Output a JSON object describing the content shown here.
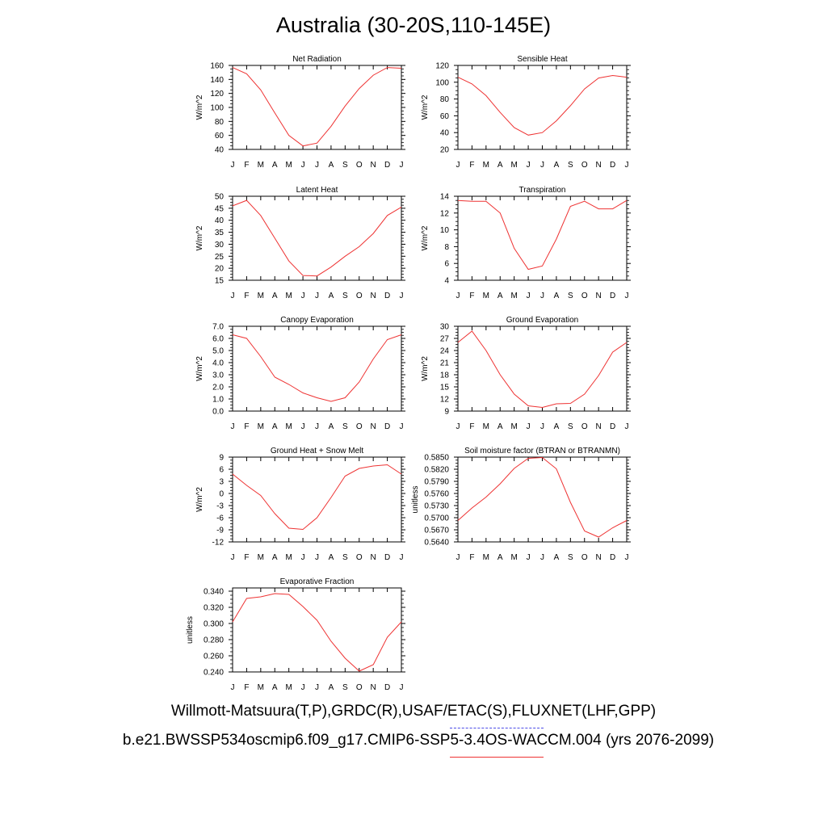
{
  "title": "Australia (30-20S,110-145E)",
  "legend": {
    "observations": "Willmott-Matsuura(T,P),GRDC(R),USAF/ETAC(S),FLUXNET(LHF,GPP)",
    "model": "b.e21.BWSSP534oscmip6.f09_g17.CMIP6-SSP5-3.4OS-WACCM.004 (yrs 2076-2099)",
    "observations_color": "#4a4ae8",
    "model_color": "#ee3333"
  },
  "chart_data": [
    {
      "type": "line",
      "title": "Net Radiation",
      "ylabel": "W/m^2",
      "categories": [
        "J",
        "F",
        "M",
        "A",
        "M",
        "J",
        "J",
        "A",
        "S",
        "O",
        "N",
        "D",
        "J"
      ],
      "yticks": [
        "40",
        "60",
        "80",
        "100",
        "120",
        "140",
        "160"
      ],
      "ylim": [
        40,
        160
      ],
      "series": [
        {
          "values": [
            157,
            148,
            125,
            92,
            60,
            45,
            49,
            73,
            102,
            127,
            146,
            157,
            156
          ],
          "color": "#ee3333"
        }
      ]
    },
    {
      "type": "line",
      "title": "Sensible Heat",
      "ylabel": "W/m^2",
      "categories": [
        "J",
        "F",
        "M",
        "A",
        "M",
        "J",
        "J",
        "A",
        "S",
        "O",
        "N",
        "D",
        "J"
      ],
      "yticks": [
        "20",
        "40",
        "60",
        "80",
        "100",
        "120"
      ],
      "ylim": [
        20,
        120
      ],
      "series": [
        {
          "values": [
            106,
            98,
            84,
            64,
            46,
            37,
            40,
            54,
            72,
            92,
            105,
            108,
            106
          ],
          "color": "#ee3333"
        }
      ]
    },
    {
      "type": "line",
      "title": "Latent Heat",
      "ylabel": "W/m^2",
      "categories": [
        "J",
        "F",
        "M",
        "A",
        "M",
        "J",
        "J",
        "A",
        "S",
        "O",
        "N",
        "D",
        "J"
      ],
      "yticks": [
        "15",
        "20",
        "25",
        "30",
        "35",
        "40",
        "45",
        "50"
      ],
      "ylim": [
        15,
        50
      ],
      "series": [
        {
          "values": [
            46,
            48.3,
            42,
            32.5,
            23,
            17,
            16.8,
            20.5,
            25,
            29,
            34.5,
            42,
            45.5
          ],
          "color": "#ee3333"
        }
      ]
    },
    {
      "type": "line",
      "title": "Transpiration",
      "ylabel": "W/m^2",
      "categories": [
        "J",
        "F",
        "M",
        "A",
        "M",
        "J",
        "J",
        "A",
        "S",
        "O",
        "N",
        "D",
        "J"
      ],
      "yticks": [
        "4",
        "6",
        "8",
        "10",
        "12",
        "14"
      ],
      "ylim": [
        4,
        14
      ],
      "series": [
        {
          "values": [
            13.5,
            13.4,
            13.4,
            12,
            7.8,
            5.3,
            5.7,
            8.9,
            12.8,
            13.4,
            12.5,
            12.5,
            13.5
          ],
          "color": "#ee3333"
        }
      ]
    },
    {
      "type": "line",
      "title": "Canopy Evaporation",
      "ylabel": "W/m^2",
      "categories": [
        "J",
        "F",
        "M",
        "A",
        "M",
        "J",
        "J",
        "A",
        "S",
        "O",
        "N",
        "D",
        "J"
      ],
      "yticks": [
        "0.0",
        "1.0",
        "2.0",
        "3.0",
        "4.0",
        "5.0",
        "6.0",
        "7.0"
      ],
      "ylim": [
        0,
        7
      ],
      "series": [
        {
          "values": [
            6.3,
            6.0,
            4.5,
            2.8,
            2.2,
            1.5,
            1.1,
            0.8,
            1.1,
            2.4,
            4.3,
            5.9,
            6.3
          ],
          "color": "#ee3333"
        }
      ]
    },
    {
      "type": "line",
      "title": "Ground Evaporation",
      "ylabel": "W/m^2",
      "categories": [
        "J",
        "F",
        "M",
        "A",
        "M",
        "J",
        "J",
        "A",
        "S",
        "O",
        "N",
        "D",
        "J"
      ],
      "yticks": [
        "9",
        "12",
        "15",
        "18",
        "21",
        "24",
        "27",
        "30"
      ],
      "ylim": [
        9,
        30
      ],
      "series": [
        {
          "values": [
            26,
            28.8,
            24,
            18,
            13.2,
            10.3,
            9.9,
            10.8,
            10.9,
            13.2,
            17.8,
            23.6,
            26
          ],
          "color": "#ee3333"
        }
      ]
    },
    {
      "type": "line",
      "title": "Ground Heat + Snow Melt",
      "ylabel": "W/m^2",
      "categories": [
        "J",
        "F",
        "M",
        "A",
        "M",
        "J",
        "J",
        "A",
        "S",
        "O",
        "N",
        "D",
        "J"
      ],
      "yticks": [
        "-12",
        "-9",
        "-6",
        "-3",
        "0",
        "3",
        "6",
        "9"
      ],
      "ylim": [
        -12,
        9
      ],
      "series": [
        {
          "values": [
            4.8,
            2,
            -0.5,
            -5,
            -8.6,
            -8.9,
            -6,
            -1,
            4.3,
            6.2,
            6.8,
            7.1,
            4.8
          ],
          "color": "#ee3333"
        }
      ]
    },
    {
      "type": "line",
      "title": "Soil moisture factor (BTRAN or BTRANMN)",
      "ylabel": "unitless",
      "categories": [
        "J",
        "F",
        "M",
        "A",
        "M",
        "J",
        "J",
        "A",
        "S",
        "O",
        "N",
        "D",
        "J"
      ],
      "yticks": [
        "0.5640",
        "0.5670",
        "0.5700",
        "0.5730",
        "0.5760",
        "0.5790",
        "0.5820",
        "0.5850"
      ],
      "ylim": [
        0.564,
        0.585
      ],
      "series": [
        {
          "values": [
            0.5693,
            0.5724,
            0.5751,
            0.5784,
            0.5822,
            0.5847,
            0.5849,
            0.5821,
            0.5738,
            0.5667,
            0.5652,
            0.5675,
            0.5693
          ],
          "color": "#ee3333"
        }
      ]
    },
    {
      "type": "line",
      "title": "Evaporative Fraction",
      "ylabel": "unitless",
      "categories": [
        "J",
        "F",
        "M",
        "A",
        "M",
        "J",
        "J",
        "A",
        "S",
        "O",
        "N",
        "D",
        "J"
      ],
      "yticks": [
        "0.240",
        "0.260",
        "0.280",
        "0.300",
        "0.320",
        "0.340"
      ],
      "ylim": [
        0.24,
        0.344
      ],
      "series": [
        {
          "values": [
            0.302,
            0.331,
            0.333,
            0.337,
            0.336,
            0.321,
            0.304,
            0.278,
            0.257,
            0.241,
            0.249,
            0.283,
            0.302
          ],
          "color": "#ee3333"
        }
      ]
    }
  ]
}
